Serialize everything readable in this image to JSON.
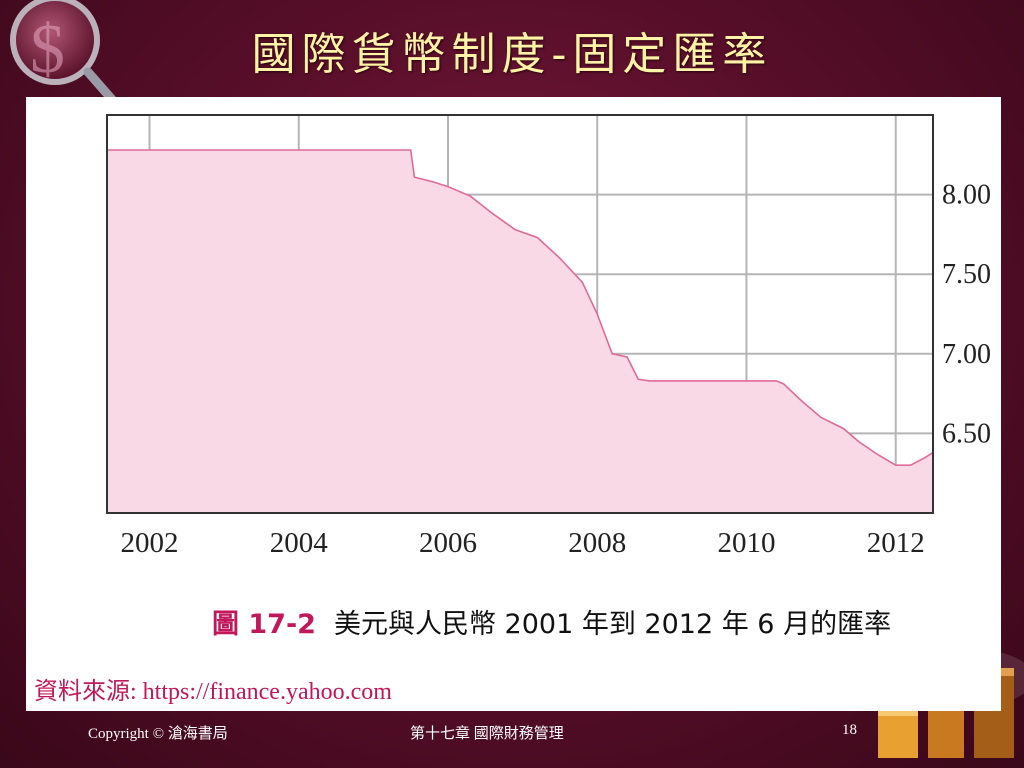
{
  "slide": {
    "title": "國際貨幣制度-固定匯率"
  },
  "figure": {
    "label": "圖 17-2",
    "caption": "美元與人民幣 2001 年到 2012 年 6 月的匯率",
    "source": "資料來源: https://finance.yahoo.com"
  },
  "footer": {
    "copyright": "Copyright © 滄海書局",
    "chapter": "第十七章 國際財務管理",
    "page": "18"
  },
  "colors": {
    "background": "#5a0f2a",
    "title": "#fff3a6",
    "area_fill": "#f9d9e6",
    "line": "#e06a98",
    "caption_accent": "#c2185b"
  },
  "chart_data": {
    "type": "area",
    "title": "",
    "xlabel": "",
    "ylabel": "",
    "x_ticks": [
      "2002",
      "2004",
      "2006",
      "2008",
      "2010",
      "2012"
    ],
    "x_tick_values": [
      2002,
      2004,
      2006,
      2008,
      2010,
      2012
    ],
    "y_ticks": [
      "8.00",
      "7.50",
      "7.00",
      "6.50"
    ],
    "y_tick_values": [
      8.0,
      7.5,
      7.0,
      6.5
    ],
    "xlim": [
      2001.43,
      2012.5
    ],
    "ylim": [
      6.0,
      8.5
    ],
    "y_axis_side": "right",
    "grid": true,
    "series": [
      {
        "x": [
          2001.43,
          2002.5,
          2003.0,
          2004.0,
          2005.0,
          2005.5,
          2005.55,
          2005.8,
          2006.0,
          2006.3,
          2006.6,
          2006.9,
          2007.2,
          2007.5,
          2007.8,
          2008.0,
          2008.2,
          2008.4,
          2008.55,
          2008.7,
          2009.0,
          2009.5,
          2010.0,
          2010.4,
          2010.5,
          2010.75,
          2011.0,
          2011.3,
          2011.5,
          2011.75,
          2012.0,
          2012.2,
          2012.4,
          2012.5
        ],
        "y": [
          8.28,
          8.28,
          8.28,
          8.28,
          8.28,
          8.28,
          8.11,
          8.08,
          8.05,
          7.99,
          7.88,
          7.78,
          7.73,
          7.6,
          7.45,
          7.25,
          7.0,
          6.98,
          6.84,
          6.83,
          6.83,
          6.83,
          6.83,
          6.83,
          6.81,
          6.7,
          6.6,
          6.53,
          6.45,
          6.37,
          6.3,
          6.3,
          6.35,
          6.38
        ]
      }
    ]
  }
}
